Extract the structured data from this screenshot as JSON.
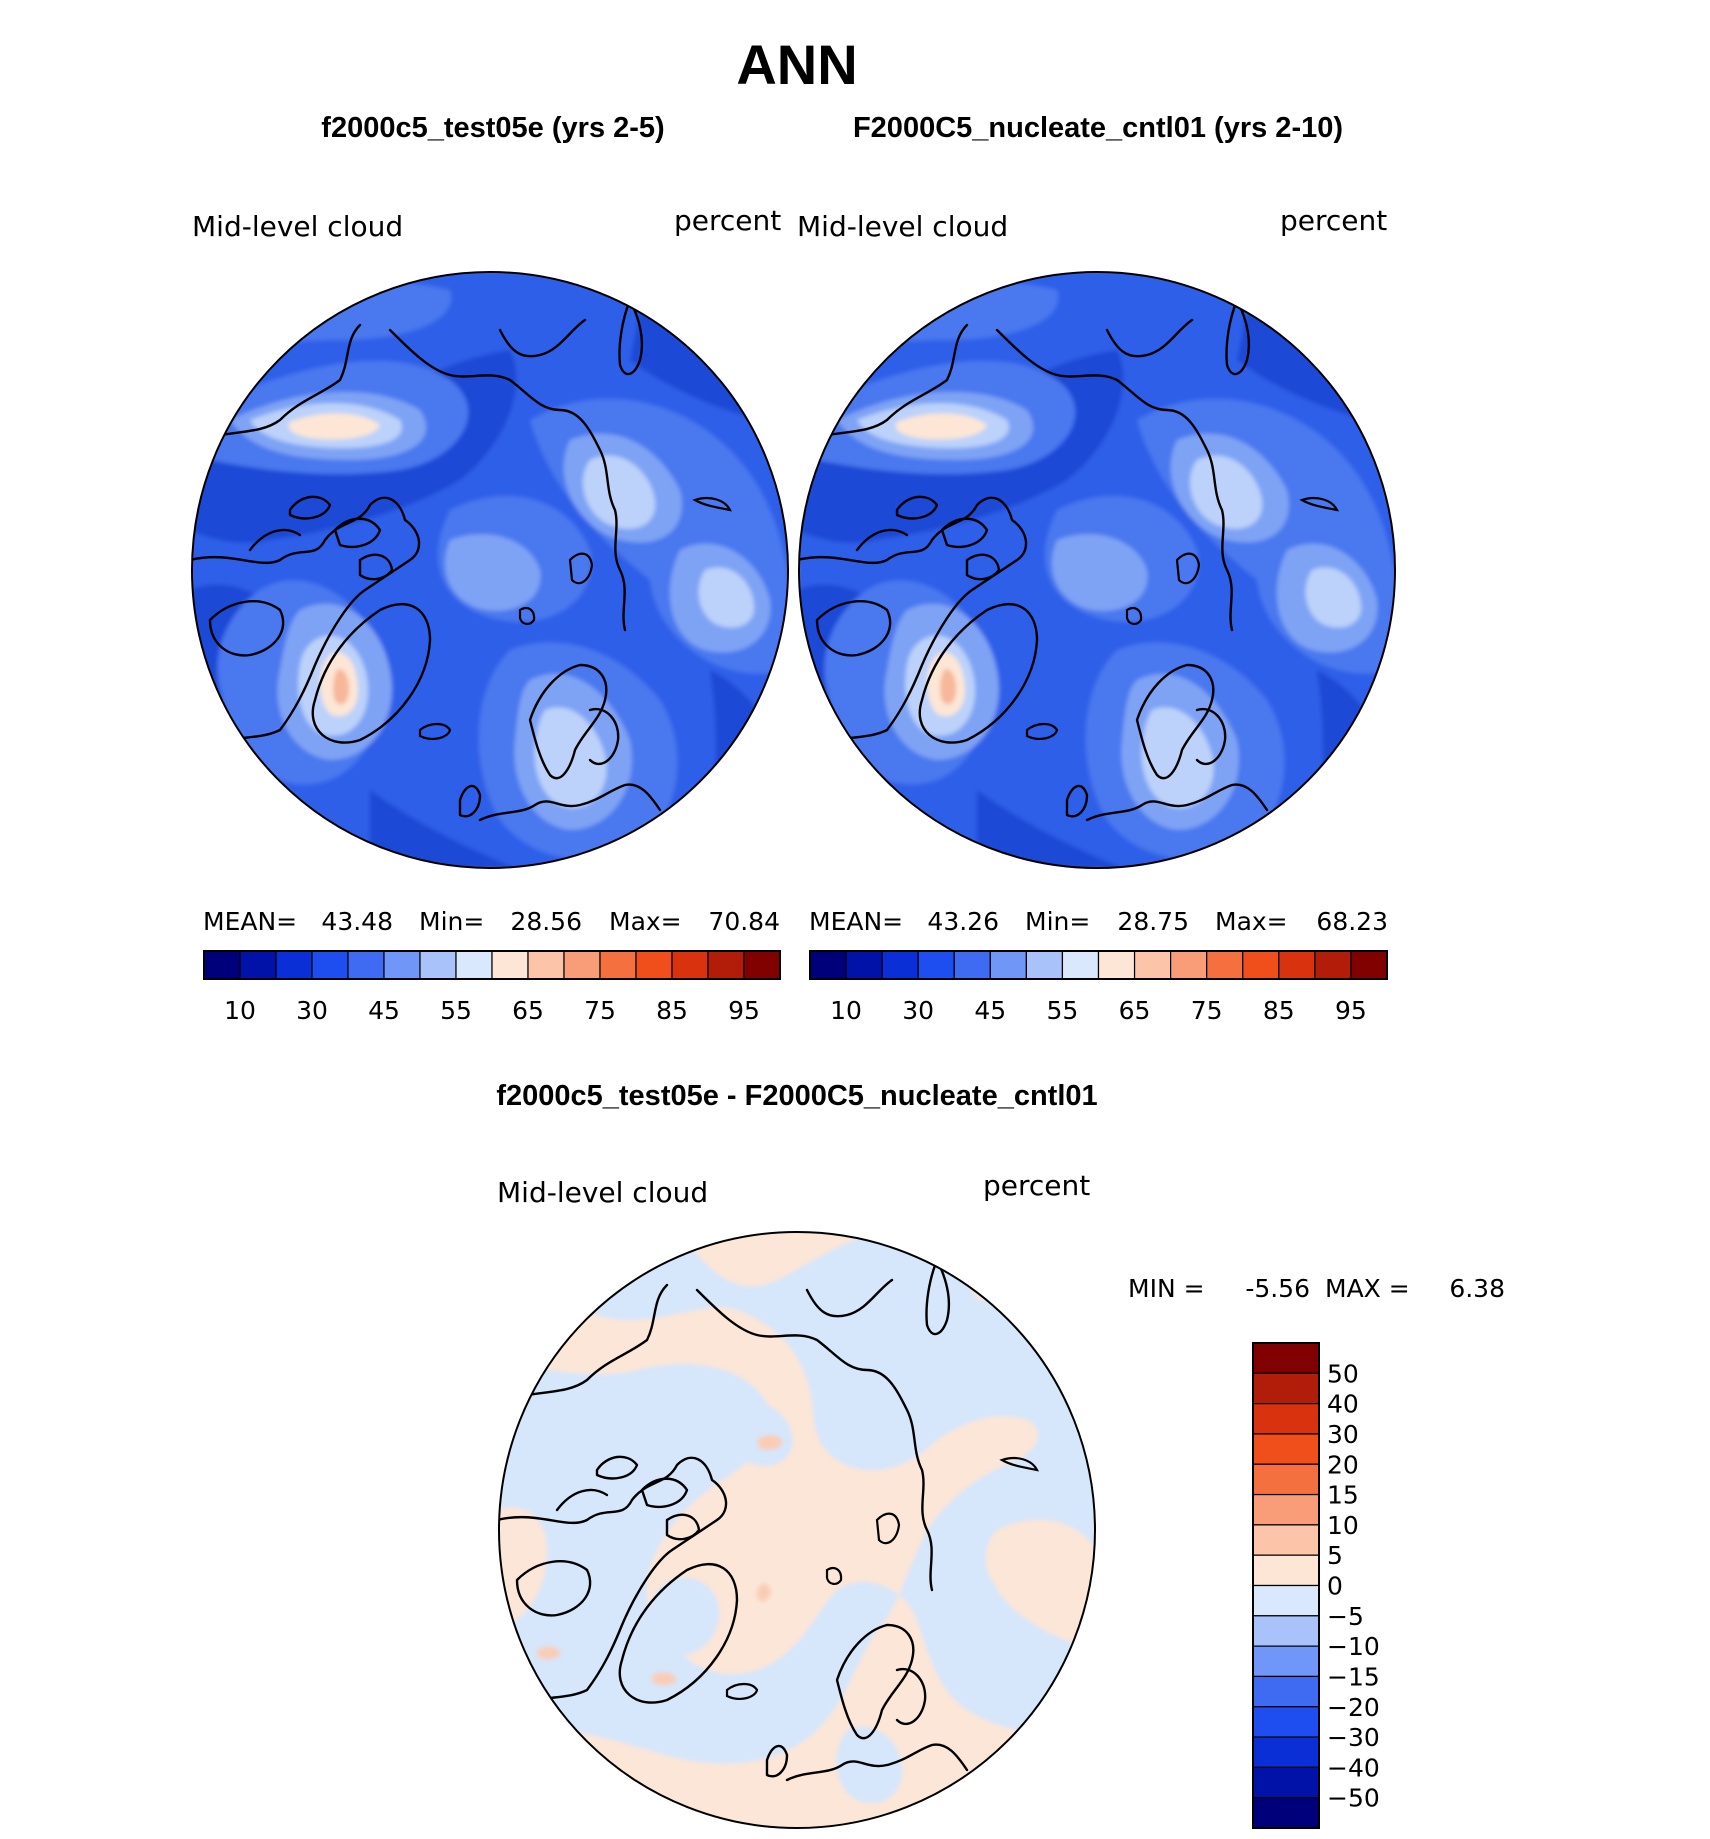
{
  "title": "ANN",
  "panels": [
    {
      "header": "f2000c5_test05e (yrs 2-5)",
      "variable_label": "Mid-level cloud",
      "units_label": "percent",
      "stats": {
        "mean_label": "MEAN=",
        "mean": "43.48",
        "min_label": "Min=",
        "min": "28.56",
        "max_label": "Max=",
        "max": "70.84"
      }
    },
    {
      "header": "F2000C5_nucleate_cntl01 (yrs 2-10)",
      "variable_label": "Mid-level cloud",
      "units_label": "percent",
      "stats": {
        "mean_label": "MEAN=",
        "mean": "43.26",
        "min_label": "Min=",
        "min": "28.75",
        "max_label": "Max=",
        "max": "68.23"
      }
    }
  ],
  "abs_colorbar": {
    "colors": [
      "#00007a",
      "#0012a8",
      "#0a2fd6",
      "#1f4ef0",
      "#3f6af2",
      "#7096f7",
      "#a9c3fa",
      "#d9e8fc",
      "#fde6d6",
      "#fcc4a8",
      "#f89d78",
      "#f4713f",
      "#f04e1a",
      "#d8320f",
      "#b21d0a",
      "#810000"
    ],
    "tick_labels": [
      "10",
      "30",
      "45",
      "55",
      "65",
      "75",
      "85",
      "95"
    ]
  },
  "difference": {
    "header": "f2000c5_test05e - F2000C5_nucleate_cntl01",
    "variable_label": "Mid-level cloud",
    "units_label": "percent",
    "min_label": "MIN =",
    "min": "-5.56",
    "max_label": "MAX =",
    "max": "6.38",
    "colorbar": {
      "colors": [
        "#00007a",
        "#0012a8",
        "#0a2fd6",
        "#1f4ef0",
        "#3f6af2",
        "#7096f7",
        "#a9c3fa",
        "#d9e8fc",
        "#fde6d6",
        "#fcc4a8",
        "#f89d78",
        "#f4713f",
        "#f04e1a",
        "#d8320f",
        "#b21d0a",
        "#810000"
      ],
      "tick_labels": [
        "−50",
        "−40",
        "−30",
        "−20",
        "−15",
        "−10",
        "−5",
        "0",
        "5",
        "10",
        "15",
        "20",
        "30",
        "40",
        "50"
      ]
    }
  },
  "colors": {
    "ocean_base": "#2f5ee8",
    "deep_blue": "#1c4ad6",
    "mid_blue": "#4a78ef",
    "light_blue": "#7ea3f5",
    "pale_blue": "#bcd2fa",
    "pale_peach": "#fde6d6",
    "peach": "#f7b79a",
    "diff_neg": "#d6e6fb",
    "diff_pos": "#fce6d7",
    "diff_pos_strong": "#f9cdb5"
  }
}
